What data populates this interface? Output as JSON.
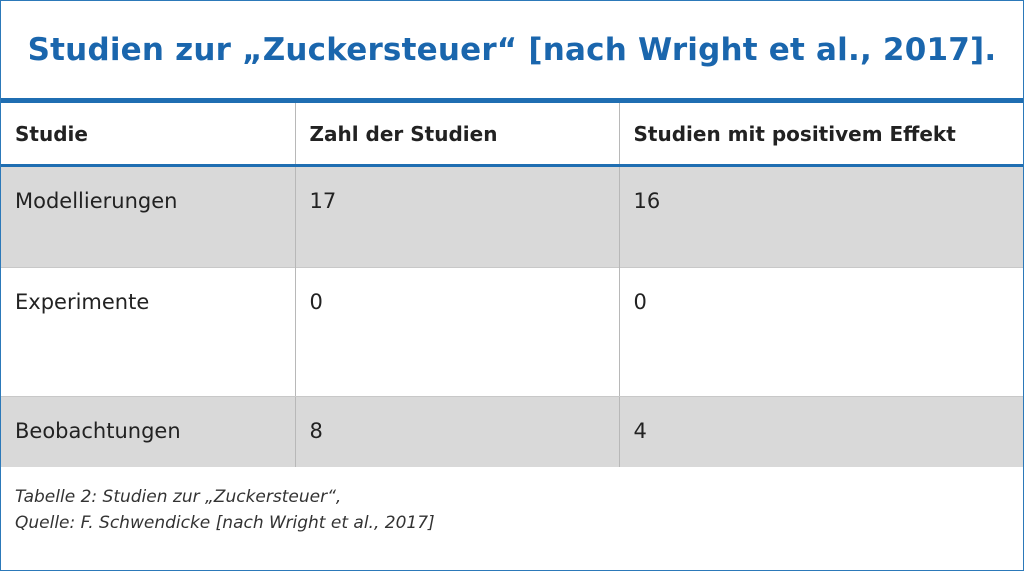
{
  "title": "Studien zur „Zuckersteuer“ [nach Wright et al., 2017].",
  "table": {
    "headers": [
      "Studie",
      "Zahl der Studien",
      "Studien mit positivem Effekt"
    ],
    "rows": [
      [
        "Modellierungen",
        "17",
        "16"
      ],
      [
        "Experimente",
        "0",
        "0"
      ],
      [
        "Beobachtungen",
        "8",
        "4"
      ]
    ]
  },
  "caption": {
    "line1": "Tabelle 2: Studien zur „Zuckersteuer“,",
    "line2": "Quelle: F. Schwendicke [nach Wright et al., 2017]"
  },
  "colors": {
    "accent": "#1f6eb2",
    "title_text": "#1a66ad",
    "row_shade": "#d9d9d9"
  }
}
